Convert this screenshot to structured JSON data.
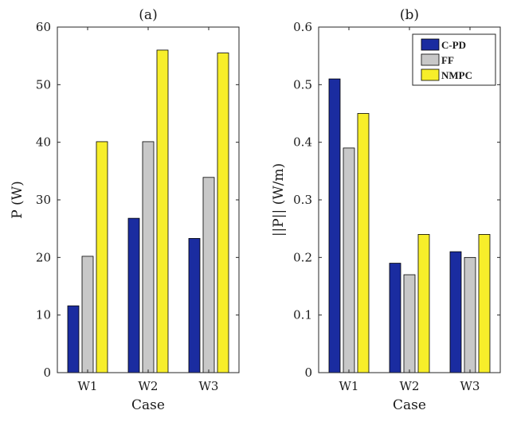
{
  "colors": {
    "C-PD": "#1a2ca0",
    "FF": "#c8c8c8",
    "NMPC": "#f7ee2a"
  },
  "chart_data": [
    {
      "type": "bar",
      "title": "(a)",
      "xlabel": "Case",
      "ylabel": "P  (W)",
      "categories": [
        "W1",
        "W2",
        "W3"
      ],
      "ylim": [
        0,
        60
      ],
      "yticks": [
        0,
        10,
        20,
        30,
        40,
        50,
        60
      ],
      "ytick_labels": [
        "0",
        "10",
        "20",
        "30",
        "40",
        "50",
        "60"
      ],
      "series": [
        {
          "name": "C-PD",
          "values": [
            11.6,
            26.8,
            23.3
          ]
        },
        {
          "name": "FF",
          "values": [
            20.2,
            40.1,
            33.9
          ]
        },
        {
          "name": "NMPC",
          "values": [
            40.1,
            56.0,
            55.5
          ]
        }
      ]
    },
    {
      "type": "bar",
      "title": "(b)",
      "xlabel": "Case",
      "ylabel": "||P|| (W/m)",
      "categories": [
        "W1",
        "W2",
        "W3"
      ],
      "ylim": [
        0,
        0.6
      ],
      "yticks": [
        0,
        0.1,
        0.2,
        0.3,
        0.4,
        0.5,
        0.6
      ],
      "ytick_labels": [
        "0",
        "0.1",
        "0.2",
        "0.3",
        "0.4",
        "0.5",
        "0.6"
      ],
      "legend": {
        "position": "top-right",
        "entries": [
          "C-PD",
          "FF",
          "NMPC"
        ]
      },
      "series": [
        {
          "name": "C-PD",
          "values": [
            0.51,
            0.19,
            0.21
          ]
        },
        {
          "name": "FF",
          "values": [
            0.39,
            0.17,
            0.2
          ]
        },
        {
          "name": "NMPC",
          "values": [
            0.45,
            0.24,
            0.24
          ]
        }
      ]
    }
  ]
}
